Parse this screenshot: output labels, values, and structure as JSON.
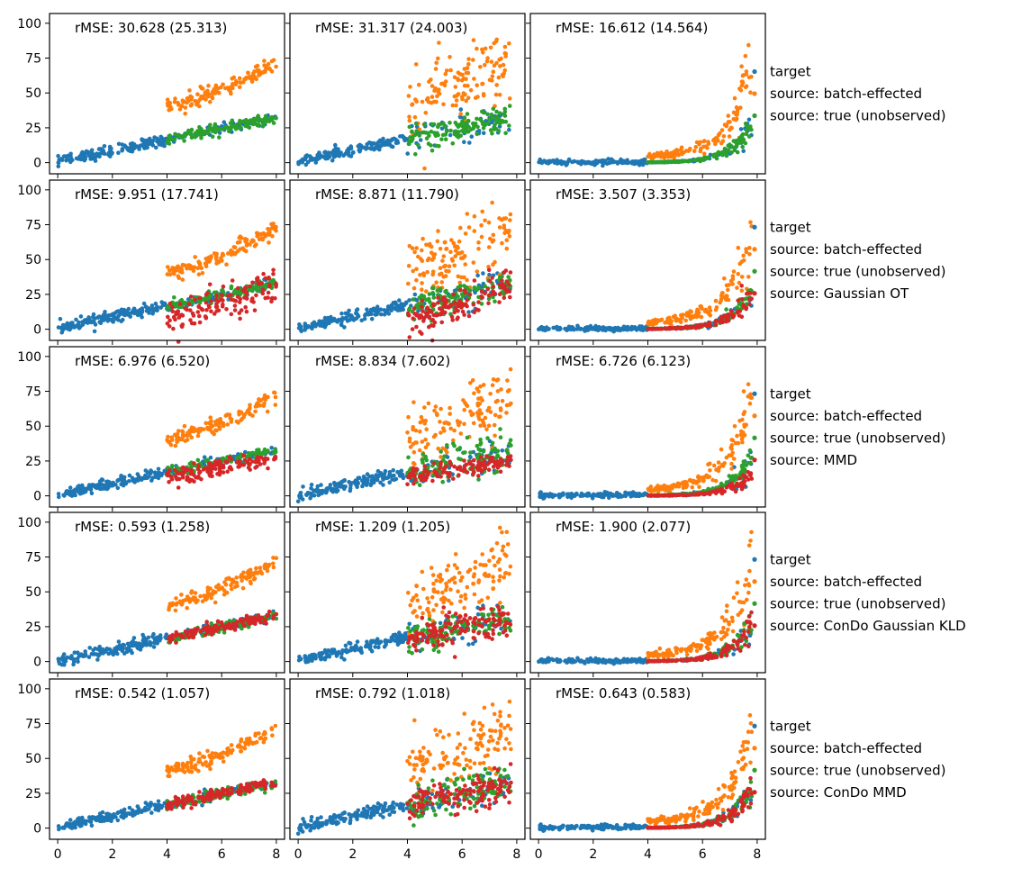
{
  "figure": {
    "col_panels": [
      {
        "curve": "linear",
        "noise": "low"
      },
      {
        "curve": "linear",
        "noise": "high"
      },
      {
        "curve": "exponential",
        "noise": "low"
      }
    ]
  },
  "colors": {
    "target": "#1f77b4",
    "source: batch-effected": "#ff7f0e",
    "source: true (unobserved)": "#2ca02c",
    "correction": "#d62728"
  },
  "chart_data": [
    {
      "type": "scatter",
      "row": 0,
      "xlim": [
        -0.3,
        8.3
      ],
      "ylim": [
        -8,
        107
      ],
      "x_ticks": [
        0,
        2,
        4,
        6,
        8
      ],
      "y_ticks": [
        0,
        25,
        50,
        75,
        100
      ],
      "legend": [
        "target",
        "source: batch-effected",
        "source: true (unobserved)"
      ],
      "panels": [
        {
          "rmse": "rMSE: 30.628 (25.313)"
        },
        {
          "rmse": "rMSE: 31.317 (24.003)"
        },
        {
          "rmse": "rMSE: 16.612 (14.564)"
        }
      ]
    },
    {
      "type": "scatter",
      "row": 1,
      "xlim": [
        -0.3,
        8.3
      ],
      "ylim": [
        -8,
        107
      ],
      "x_ticks": [
        0,
        2,
        4,
        6,
        8
      ],
      "y_ticks": [
        0,
        25,
        50,
        75,
        100
      ],
      "legend": [
        "target",
        "source: batch-effected",
        "source: true (unobserved)",
        "source: Gaussian OT"
      ],
      "panels": [
        {
          "rmse": "rMSE: 9.951 (17.741)"
        },
        {
          "rmse": "rMSE: 8.871 (11.790)"
        },
        {
          "rmse": "rMSE: 3.507 (3.353)"
        }
      ]
    },
    {
      "type": "scatter",
      "row": 2,
      "xlim": [
        -0.3,
        8.3
      ],
      "ylim": [
        -8,
        107
      ],
      "x_ticks": [
        0,
        2,
        4,
        6,
        8
      ],
      "y_ticks": [
        0,
        25,
        50,
        75,
        100
      ],
      "legend": [
        "target",
        "source: batch-effected",
        "source: true (unobserved)",
        "source: MMD"
      ],
      "panels": [
        {
          "rmse": "rMSE: 6.976  (6.520)"
        },
        {
          "rmse": "rMSE: 8.834  (7.602)"
        },
        {
          "rmse": "rMSE: 6.726  (6.123)"
        }
      ]
    },
    {
      "type": "scatter",
      "row": 3,
      "xlim": [
        -0.3,
        8.3
      ],
      "ylim": [
        -8,
        107
      ],
      "x_ticks": [
        0,
        2,
        4,
        6,
        8
      ],
      "y_ticks": [
        0,
        25,
        50,
        75,
        100
      ],
      "legend": [
        "target",
        "source: batch-effected",
        "source: true (unobserved)",
        "source: ConDo Gaussian KLD"
      ],
      "panels": [
        {
          "rmse": "rMSE: 0.593 (1.258)"
        },
        {
          "rmse": "rMSE: 1.209 (1.205)"
        },
        {
          "rmse": "rMSE: 1.900 (2.077)"
        }
      ]
    },
    {
      "type": "scatter",
      "row": 4,
      "xlim": [
        -0.3,
        8.3
      ],
      "ylim": [
        -8,
        107
      ],
      "x_ticks": [
        0,
        2,
        4,
        6,
        8
      ],
      "y_ticks": [
        0,
        25,
        50,
        75,
        100
      ],
      "legend": [
        "target",
        "source: batch-effected",
        "source: true (unobserved)",
        "source: ConDo MMD"
      ],
      "panels": [
        {
          "rmse": "rMSE: 0.542  (1.057)"
        },
        {
          "rmse": "rMSE: 0.792  (1.018)"
        },
        {
          "rmse": "rMSE: 0.643  (0.583)"
        }
      ]
    }
  ]
}
